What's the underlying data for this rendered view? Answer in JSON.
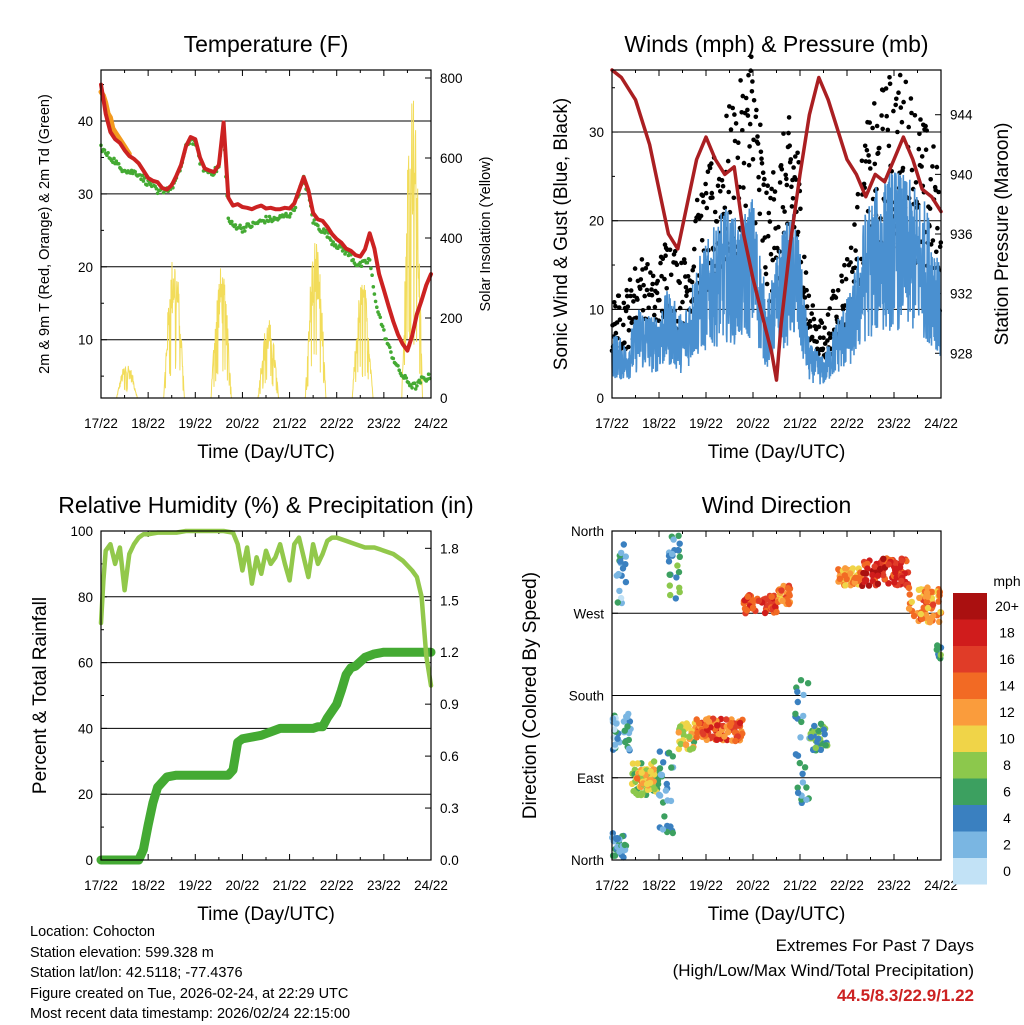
{
  "colors": {
    "temp_red": "#cc2222",
    "temp_orange": "#f39a1e",
    "dewpoint_green": "#44aa33",
    "solar_yellow": "#f2dc5a",
    "wind_blue": "#4a90d0",
    "gust_black": "#000000",
    "pressure_maroon": "#aa1f22",
    "rh_lightgreen": "#92c84b",
    "precip_green": "#44aa33",
    "extremes_red": "#cc2222"
  },
  "chart_data": [
    {
      "id": "temperature",
      "type": "line",
      "title": "Temperature (F)",
      "xlabel": "Time (Day/UTC)",
      "ylabel_left": "2m & 9m T (Red, Orange) & 2m Td (Green)",
      "ylabel_right": "Solar Insolation (Yellow)",
      "x_ticks": [
        "17/22",
        "18/22",
        "19/22",
        "20/22",
        "21/22",
        "22/22",
        "23/22",
        "24/22"
      ],
      "xlim": [
        0,
        7
      ],
      "ylim_left": [
        2,
        47
      ],
      "ylim_right": [
        0,
        820
      ],
      "y_ticks_left": [
        "10",
        "20",
        "30",
        "40"
      ],
      "y_ticks_right": [
        "0",
        "200",
        "400",
        "600",
        "800"
      ],
      "series": [
        {
          "name": "2m T",
          "color": "#cc2222",
          "x": [
            0,
            0.05,
            0.1,
            0.2,
            0.3,
            0.4,
            0.5,
            0.6,
            0.7,
            0.8,
            0.9,
            1.0,
            1.1,
            1.2,
            1.3,
            1.4,
            1.5,
            1.6,
            1.7,
            1.8,
            1.9,
            2.0,
            2.1,
            2.2,
            2.3,
            2.4,
            2.5,
            2.6,
            2.7,
            2.8,
            2.9,
            3.0,
            3.1,
            3.2,
            3.3,
            3.4,
            3.5,
            3.6,
            3.7,
            3.8,
            3.9,
            4.0,
            4.1,
            4.2,
            4.3,
            4.4,
            4.5,
            4.6,
            4.7,
            4.8,
            4.9,
            5.0,
            5.1,
            5.2,
            5.3,
            5.4,
            5.5,
            5.6,
            5.7,
            5.8,
            5.9,
            6.0,
            6.1,
            6.2,
            6.3,
            6.4,
            6.5,
            6.6,
            6.7,
            6.8,
            6.9,
            7.0
          ],
          "y": [
            45,
            43,
            41,
            38.5,
            37.5,
            37,
            36,
            35.2,
            34.8,
            34.2,
            33.2,
            32.2,
            31.8,
            31.6,
            30.8,
            30.6,
            31.2,
            32.5,
            34,
            36.5,
            37.8,
            37.5,
            35,
            33.5,
            33.2,
            33,
            34,
            39.8,
            29.5,
            28.4,
            28.6,
            28.2,
            28.1,
            27.9,
            28.2,
            28.4,
            28,
            28.1,
            27.9,
            27.9,
            28.1,
            28,
            28.7,
            30.5,
            32.3,
            30.5,
            27.4,
            26.5,
            26.3,
            25.5,
            24.5,
            23.8,
            23.3,
            22.5,
            22.2,
            21.6,
            21.4,
            22.4,
            24.6,
            22.5,
            19,
            16.8,
            14.6,
            12.5,
            10.7,
            9.4,
            8.5,
            10.5,
            13.5,
            15.4,
            17.5,
            19
          ]
        },
        {
          "name": "9m T",
          "color": "#f39a1e",
          "x": [
            0,
            0.05,
            0.1,
            0.15,
            0.2,
            0.25,
            0.3,
            0.35,
            0.4,
            0.5,
            0.6
          ],
          "y": [
            44,
            43.5,
            42.5,
            41,
            40.5,
            39,
            38.5,
            38,
            37.5,
            36.5,
            35.5
          ]
        },
        {
          "name": "2m Td",
          "color": "#44aa33",
          "x": [
            0,
            0.1,
            0.2,
            0.3,
            0.4,
            0.5,
            0.6,
            0.7,
            0.8,
            0.9,
            1.0,
            1.1,
            1.2,
            1.3,
            1.4,
            1.5,
            1.6,
            1.7,
            1.8,
            1.9,
            2.0,
            2.1,
            2.2,
            2.3,
            2.4,
            2.5,
            2.6,
            2.7,
            2.8,
            2.9,
            3.0,
            3.1,
            3.2,
            3.3,
            3.4,
            3.5,
            3.6,
            3.7,
            3.8,
            3.9,
            4.0,
            4.1,
            4.2,
            4.3,
            4.4,
            4.5,
            4.6,
            4.7,
            4.8,
            4.9,
            5.0,
            5.1,
            5.2,
            5.3,
            5.4,
            5.5,
            5.6,
            5.7,
            5.8,
            5.9,
            6.0,
            6.1,
            6.2,
            6.3,
            6.4,
            6.5,
            6.6,
            6.7,
            6.8,
            6.9,
            7.0
          ],
          "y": [
            36.5,
            35.5,
            35,
            34.5,
            33.5,
            33.5,
            33,
            33,
            32.8,
            32,
            31.5,
            31.2,
            30,
            30.5,
            30.7,
            30.9,
            32,
            33.8,
            36.3,
            37.5,
            37,
            34.5,
            33.2,
            33,
            33,
            33.7,
            39,
            26.5,
            25.6,
            25.6,
            25.2,
            25.5,
            25.7,
            26,
            26.2,
            26.5,
            26.5,
            26.5,
            26.7,
            27,
            27.2,
            28,
            30.3,
            32,
            30,
            26.3,
            25.5,
            25,
            24.5,
            23.5,
            23,
            22.5,
            22,
            21.5,
            20.5,
            20.2,
            20.5,
            21,
            16,
            13.5,
            11,
            9,
            7.5,
            6,
            5,
            4.3,
            3.7,
            3.6,
            4.5,
            4.7,
            5
          ]
        },
        {
          "name": "Solar",
          "color": "#f2dc5a",
          "axis": "right",
          "days": [
            {
              "center": 0.55,
              "half": 0.22,
              "peak": 90
            },
            {
              "center": 1.55,
              "half": 0.22,
              "peak": 370
            },
            {
              "center": 2.55,
              "half": 0.22,
              "peak": 330
            },
            {
              "center": 3.55,
              "half": 0.22,
              "peak": 200
            },
            {
              "center": 4.55,
              "half": 0.22,
              "peak": 410
            },
            {
              "center": 5.55,
              "half": 0.22,
              "peak": 300
            },
            {
              "center": 6.6,
              "half": 0.22,
              "peak": 790
            }
          ]
        }
      ]
    },
    {
      "id": "winds",
      "type": "line",
      "title": "Winds (mph) & Pressure (mb)",
      "xlabel": "Time (Day/UTC)",
      "ylabel_left": "Sonic Wind & Gust (Blue, Black)",
      "ylabel_right": "Station Pressure (Maroon)",
      "x_ticks": [
        "17/22",
        "18/22",
        "19/22",
        "20/22",
        "21/22",
        "22/22",
        "23/22",
        "24/22"
      ],
      "xlim": [
        0,
        7
      ],
      "ylim_left": [
        0,
        37
      ],
      "ylim_right": [
        925,
        947
      ],
      "y_ticks_left": [
        "0",
        "10",
        "20",
        "30"
      ],
      "y_ticks_right": [
        "928",
        "932",
        "936",
        "940",
        "944"
      ],
      "series": [
        {
          "name": "Sonic Wind",
          "color": "#4a90d0",
          "x": [
            0,
            0.3,
            0.6,
            0.9,
            1.2,
            1.5,
            1.8,
            2.1,
            2.4,
            2.7,
            3.0,
            3.3,
            3.6,
            3.9,
            4.2,
            4.5,
            4.8,
            5.1,
            5.4,
            5.7,
            6.0,
            6.3,
            6.6,
            6.9,
            7.0
          ],
          "y": [
            5,
            4,
            7,
            6,
            8,
            6,
            10,
            12,
            14,
            13,
            15,
            7,
            12,
            14,
            4,
            3,
            6,
            8,
            14,
            16,
            17,
            16,
            15,
            12,
            8
          ]
        },
        {
          "name": "Gust",
          "color": "#000000",
          "x": [
            0,
            0.3,
            0.6,
            0.9,
            1.2,
            1.5,
            1.8,
            2.1,
            2.4,
            2.7,
            3.0,
            3.3,
            3.6,
            3.9,
            4.2,
            4.5,
            4.8,
            5.1,
            5.4,
            5.7,
            6.0,
            6.3,
            6.6,
            6.9,
            7.0
          ],
          "y": [
            8,
            9,
            12,
            10,
            14,
            11,
            16,
            19,
            23,
            25,
            30,
            17,
            21,
            24,
            8,
            6,
            10,
            13,
            22,
            25,
            27,
            26,
            23,
            20,
            14
          ]
        },
        {
          "name": "Station Pressure",
          "color": "#aa1f22",
          "x": [
            0,
            0.2,
            0.5,
            0.8,
            1.0,
            1.2,
            1.4,
            1.6,
            1.8,
            2.0,
            2.2,
            2.4,
            2.6,
            2.8,
            3.0,
            3.2,
            3.4,
            3.5,
            3.6,
            3.8,
            4.0,
            4.2,
            4.4,
            4.6,
            4.8,
            5.0,
            5.2,
            5.4,
            5.6,
            5.8,
            6.0,
            6.2,
            6.4,
            6.6,
            6.8,
            7.0
          ],
          "y": [
            947,
            946.5,
            945,
            942,
            939,
            936,
            935,
            938,
            941,
            942.5,
            941,
            940,
            940.5,
            936,
            933,
            930.5,
            928,
            926.2,
            930,
            935.5,
            940,
            944,
            946.5,
            945,
            943,
            941,
            940,
            938.5,
            940,
            939.5,
            941,
            942.5,
            941,
            939,
            938.5,
            937.5
          ]
        }
      ]
    },
    {
      "id": "humidity",
      "type": "line",
      "title": "Relative Humidity (%) & Precipitation (in)",
      "xlabel": "Time (Day/UTC)",
      "ylabel_left": "Percent & Total Rainfall",
      "x_ticks": [
        "17/22",
        "18/22",
        "19/22",
        "20/22",
        "21/22",
        "22/22",
        "23/22",
        "24/22"
      ],
      "xlim": [
        0,
        7
      ],
      "ylim_left": [
        0,
        100
      ],
      "ylim_right": [
        0,
        1.9
      ],
      "y_ticks_left": [
        "0",
        "20",
        "40",
        "60",
        "80",
        "100"
      ],
      "y_ticks_right": [
        "0.0",
        "0.3",
        "0.6",
        "0.9",
        "1.2",
        "1.5",
        "1.8"
      ],
      "series": [
        {
          "name": "RH",
          "color": "#92c84b",
          "x": [
            0,
            0.05,
            0.1,
            0.2,
            0.3,
            0.4,
            0.5,
            0.6,
            0.7,
            0.8,
            0.9,
            1.0,
            1.2,
            1.4,
            1.6,
            1.8,
            2.0,
            2.2,
            2.4,
            2.6,
            2.8,
            2.9,
            3.0,
            3.1,
            3.2,
            3.3,
            3.4,
            3.5,
            3.6,
            3.7,
            3.8,
            3.9,
            4.0,
            4.1,
            4.2,
            4.3,
            4.4,
            4.5,
            4.6,
            4.7,
            4.8,
            4.9,
            5.0,
            5.2,
            5.4,
            5.6,
            5.8,
            6.0,
            6.2,
            6.4,
            6.6,
            6.7,
            6.8,
            6.9,
            7.0
          ],
          "y": [
            72,
            85,
            94,
            96,
            90,
            95,
            82,
            93,
            96,
            98,
            99,
            99,
            99.5,
            99.5,
            99.5,
            100,
            100,
            100,
            100,
            100,
            99.5,
            96,
            88,
            95,
            84,
            92,
            87,
            94,
            90,
            92,
            96,
            90,
            85,
            96,
            98,
            92,
            86,
            96,
            90,
            93,
            97,
            98,
            98,
            97,
            96,
            95,
            95,
            94,
            93,
            91,
            88,
            86,
            80,
            62,
            53
          ]
        },
        {
          "name": "Total Precipitation",
          "color": "#44aa33",
          "x": [
            0,
            0.8,
            0.9,
            1.0,
            1.1,
            1.2,
            1.4,
            1.6,
            1.8,
            2.0,
            2.2,
            2.4,
            2.6,
            2.7,
            2.8,
            2.9,
            3.0,
            3.2,
            3.4,
            3.6,
            3.8,
            4.0,
            4.2,
            4.4,
            4.5,
            4.6,
            4.7,
            4.8,
            4.9,
            5.0,
            5.1,
            5.2,
            5.3,
            5.4,
            5.6,
            5.8,
            6.0,
            6.2,
            6.4,
            6.6,
            7.0
          ],
          "y": [
            0,
            0,
            0.06,
            0.2,
            0.33,
            0.42,
            0.48,
            0.49,
            0.49,
            0.49,
            0.49,
            0.49,
            0.49,
            0.49,
            0.52,
            0.68,
            0.7,
            0.71,
            0.72,
            0.74,
            0.76,
            0.76,
            0.76,
            0.76,
            0.76,
            0.77,
            0.77,
            0.82,
            0.86,
            0.9,
            0.98,
            1.07,
            1.11,
            1.12,
            1.17,
            1.19,
            1.2,
            1.2,
            1.2,
            1.2,
            1.2
          ]
        }
      ]
    },
    {
      "id": "wind_direction",
      "type": "scatter",
      "title": "Wind Direction",
      "xlabel": "Time (Day/UTC)",
      "ylabel_left": "Direction (Colored By Speed)",
      "x_ticks": [
        "17/22",
        "18/22",
        "19/22",
        "20/22",
        "21/22",
        "22/22",
        "23/22",
        "24/22"
      ],
      "xlim": [
        0,
        7
      ],
      "ylim_left": [
        0,
        360
      ],
      "y_ticks_left": [
        "North",
        "East",
        "South",
        "West",
        "North"
      ],
      "colorbar": {
        "title": "mph",
        "labels": [
          "20+",
          "18",
          "16",
          "14",
          "12",
          "10",
          "8",
          "6",
          "4",
          "2",
          "0"
        ],
        "colors": [
          "#aa1010",
          "#d01c1c",
          "#e03c28",
          "#f26a24",
          "#fa9c3c",
          "#f0d448",
          "#8cc84c",
          "#3ca060",
          "#3a80c0",
          "#7ab6e2",
          "#c2e2f6"
        ]
      },
      "segments": [
        {
          "x0": 0.0,
          "x1": 0.3,
          "dir_lo": 0,
          "dir_hi": 30,
          "spd": 4
        },
        {
          "x0": 0.1,
          "x1": 0.3,
          "dir_lo": 280,
          "dir_hi": 350,
          "spd": 3
        },
        {
          "x0": 0.0,
          "x1": 0.4,
          "dir_lo": 120,
          "dir_hi": 160,
          "spd": 3
        },
        {
          "x0": 0.4,
          "x1": 1.0,
          "dir_lo": 70,
          "dir_hi": 110,
          "spd": 8
        },
        {
          "x0": 0.5,
          "x1": 0.9,
          "dir_lo": 80,
          "dir_hi": 100,
          "spd": 11
        },
        {
          "x0": 1.0,
          "x1": 1.3,
          "dir_lo": 20,
          "dir_hi": 120,
          "spd": 4
        },
        {
          "x0": 1.2,
          "x1": 1.45,
          "dir_lo": 280,
          "dir_hi": 360,
          "spd": 5
        },
        {
          "x0": 1.4,
          "x1": 1.8,
          "dir_lo": 120,
          "dir_hi": 150,
          "spd": 9
        },
        {
          "x0": 1.8,
          "x1": 2.8,
          "dir_lo": 130,
          "dir_hi": 155,
          "spd": 15
        },
        {
          "x0": 2.8,
          "x1": 3.5,
          "dir_lo": 270,
          "dir_hi": 290,
          "spd": 16
        },
        {
          "x0": 3.5,
          "x1": 3.8,
          "dir_lo": 280,
          "dir_hi": 300,
          "spd": 13
        },
        {
          "x0": 3.9,
          "x1": 4.2,
          "dir_lo": 60,
          "dir_hi": 200,
          "spd": 4
        },
        {
          "x0": 4.2,
          "x1": 4.6,
          "dir_lo": 120,
          "dir_hi": 150,
          "spd": 6
        },
        {
          "x0": 4.8,
          "x1": 5.3,
          "dir_lo": 300,
          "dir_hi": 320,
          "spd": 12
        },
        {
          "x0": 5.3,
          "x1": 6.3,
          "dir_lo": 300,
          "dir_hi": 330,
          "spd": 17
        },
        {
          "x0": 6.3,
          "x1": 7.0,
          "dir_lo": 260,
          "dir_hi": 300,
          "spd": 13
        },
        {
          "x0": 6.9,
          "x1": 7.0,
          "dir_lo": 220,
          "dir_hi": 240,
          "spd": 5
        }
      ]
    }
  ],
  "info": {
    "location": "Location: Cohocton",
    "elevation": "Station elevation: 599.328 m",
    "latlon": "Station lat/lon: 42.5118; -77.4376",
    "created": "Figure created on Tue, 2026-02-24, at 22:29 UTC",
    "recent": "Most recent data timestamp: 2026/02/24 22:15:00"
  },
  "extremes": {
    "title": "Extremes For Past 7 Days",
    "subtitle": "(High/Low/Max Wind/Total Precipitation)",
    "values": "44.5/8.3/22.9/1.22"
  }
}
